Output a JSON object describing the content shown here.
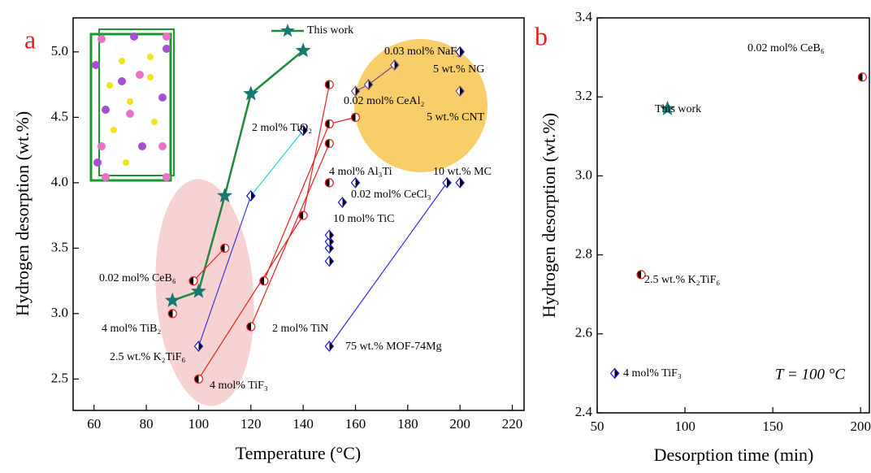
{
  "chart_data": [
    {
      "type": "scatter",
      "panel_label": "a",
      "x_label": "Temperature (°C)",
      "y_label": "Hydrogen desorption (wt.%)",
      "xlim": [
        52,
        224.5
      ],
      "ylim": [
        2.26,
        5.26
      ],
      "xticks": [
        60,
        80,
        100,
        120,
        140,
        160,
        180,
        200,
        220
      ],
      "yticks": [
        2.5,
        {
          "value": 3,
          "label": "3.0"
        },
        3.5,
        {
          "value": 4,
          "label": "4.0"
        },
        4.5,
        {
          "value": 5,
          "label": "5.0"
        }
      ],
      "legend": "top",
      "series": [
        {
          "name": "This work",
          "marker": "star",
          "color": "#167a72",
          "line_color": "#1e8a3c",
          "x": [
            90,
            100,
            110,
            120,
            140
          ],
          "values": [
            3.1,
            3.17,
            3.9,
            4.68,
            5.01
          ]
        },
        {
          "name": "0.02 mol% CeB₆",
          "marker": "circle",
          "color": "#e8201c",
          "line_color": "#e8201c",
          "x": [
            98,
            110
          ],
          "values": [
            3.25,
            3.5
          ]
        },
        {
          "name": "4 mol% TiB₂",
          "marker": "circle",
          "color": "#e8201c",
          "x": [
            90
          ],
          "values": [
            3.0
          ]
        },
        {
          "name": "2 mol% TiN",
          "marker": "circle",
          "color": "#e8201c",
          "line_color": "#e8201c",
          "x": [
            120,
            150
          ],
          "values": [
            2.9,
            4.3
          ]
        },
        {
          "name": "4 mol% TiF₃",
          "marker": "circle",
          "color": "#e8201c",
          "line_color": "#e8201c",
          "x": [
            100,
            140,
            150
          ],
          "values": [
            2.5,
            3.75,
            4.75
          ]
        },
        {
          "name": "0.02 mol% CeAl₂",
          "marker": "circle",
          "color": "#e8201c",
          "line_color": "#e8201c",
          "x": [
            125,
            150,
            160
          ],
          "values": [
            3.25,
            4.45,
            4.5
          ]
        },
        {
          "name": "2.5 wt.% K₂TiF₆",
          "marker": "diamond",
          "color": "#1a1ad6",
          "line_color": "#3a3ad6",
          "x": [
            100,
            120
          ],
          "values": [
            2.75,
            3.9
          ]
        },
        {
          "name": "2 mol% TiO₂",
          "marker": "diamond",
          "color": "#1a1ad6",
          "line_color": "#20d0e8",
          "x": [
            120,
            140
          ],
          "values": [
            3.9,
            4.4
          ]
        },
        {
          "name": "4 mol% Al₃Ti",
          "marker": "circle",
          "color": "#e8201c",
          "x": [
            150
          ],
          "values": [
            4.0
          ]
        },
        {
          "name": "0.02 mol% CeCl₃",
          "marker": "diamond",
          "color": "#1a1ad6",
          "x": [
            155,
            160
          ],
          "values": [
            3.85,
            4.0
          ]
        },
        {
          "name": "10 mol% TiC",
          "marker": "diamond",
          "color": "#1a1ad6",
          "x": [
            150,
            150,
            150,
            150
          ],
          "values": [
            3.4,
            3.5,
            3.55,
            3.6
          ]
        },
        {
          "name": "75 wt.% MOF-74Mg",
          "marker": "diamond",
          "color": "#1a1ad6",
          "line_color": "#2a2ae0",
          "x": [
            150,
            195
          ],
          "values": [
            2.75,
            4.0
          ]
        },
        {
          "name": "10 wt.% MC",
          "marker": "diamond",
          "color": "#1a1ad6",
          "x": [
            200
          ],
          "values": [
            4.0
          ]
        },
        {
          "name": "0.03 mol% NaF₃",
          "marker": "diamond",
          "color": "#7a4a9a",
          "line_color": "#7a4a9a",
          "x": [
            160,
            165,
            175
          ],
          "values": [
            4.7,
            4.75,
            4.9
          ]
        },
        {
          "name": "5 wt.% NG",
          "marker": "diamond",
          "color": "#1a1ad6",
          "x": [
            200
          ],
          "values": [
            5.0
          ]
        },
        {
          "name": "5 wt.% CNT",
          "marker": "diamond",
          "color": "#7a4a9a",
          "x": [
            200
          ],
          "values": [
            4.7
          ]
        }
      ]
    },
    {
      "type": "scatter",
      "panel_label": "b",
      "x_label": "Desorption time (min)",
      "y_label": "Hydrogen desorption (wt.%)",
      "annotation": "T = 100 °C",
      "xlim": [
        50,
        205
      ],
      "ylim": [
        2.4,
        3.4
      ],
      "xticks": [
        50,
        100,
        150,
        200
      ],
      "yticks": [
        2.4,
        2.6,
        2.8,
        {
          "value": 3,
          "label": "3.0"
        },
        3.2,
        3.4
      ],
      "series": [
        {
          "name": "This work",
          "marker": "star",
          "color": "#167a72",
          "x": [
            90
          ],
          "values": [
            3.17
          ]
        },
        {
          "name": "0.02 mol% CeB₆",
          "marker": "circle",
          "color": "#e8201c",
          "x": [
            201
          ],
          "values": [
            3.25
          ]
        },
        {
          "name": "2.5 wt.% K₂TiF₆",
          "marker": "circle",
          "color": "#e8201c",
          "x": [
            75
          ],
          "values": [
            2.75
          ]
        },
        {
          "name": "4 mol% TiF₃",
          "marker": "diamond",
          "color": "#1a1ad6",
          "x": [
            60
          ],
          "values": [
            2.5
          ]
        }
      ]
    }
  ]
}
